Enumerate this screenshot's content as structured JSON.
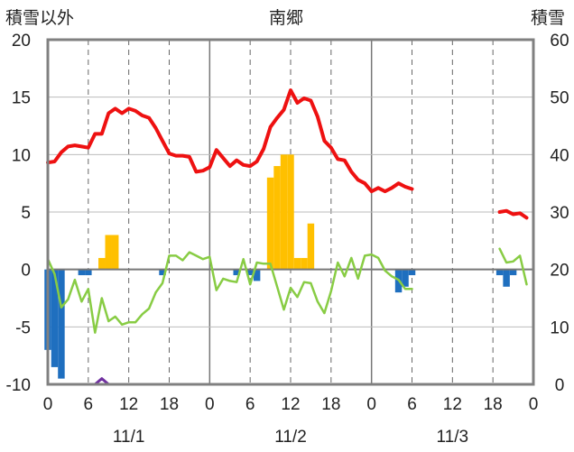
{
  "chart_data": {
    "type": "line",
    "title": "南郷",
    "y_left_label": "積雪以外",
    "y_right_label": "積雪",
    "y_left_range": [
      -10,
      20
    ],
    "y_left_ticks": [
      20,
      15,
      10,
      5,
      0,
      -5,
      -10
    ],
    "y_right_range": [
      0,
      60
    ],
    "y_right_ticks": [
      60,
      50,
      40,
      30,
      20,
      10,
      0
    ],
    "x_range_hours": [
      0,
      72
    ],
    "x_tick_labels": [
      "0",
      "6",
      "12",
      "18",
      "0",
      "6",
      "12",
      "18",
      "0",
      "6",
      "12",
      "18",
      "0"
    ],
    "date_labels": [
      "11/1",
      "11/2",
      "11/3"
    ],
    "grid": true,
    "colors": {
      "temperature": "#ee1111",
      "snow_depth_change": "#88cc44",
      "positive_bar": "#ffc000",
      "negative_bar": "#1f6fbf",
      "snow_depth": "#7030a0",
      "frame": "#808080"
    },
    "series": [
      {
        "type": "line",
        "values": [
          [
            0,
            9.3
          ],
          [
            1,
            9.4
          ],
          [
            2,
            10.2
          ],
          [
            3,
            10.7
          ],
          [
            4,
            10.8
          ],
          [
            5,
            10.7
          ],
          [
            6,
            10.6
          ],
          [
            7,
            11.8
          ],
          [
            8,
            11.8
          ],
          [
            9,
            13.6
          ],
          [
            10,
            14
          ],
          [
            11,
            13.6
          ],
          [
            12,
            14
          ],
          [
            13,
            13.8
          ],
          [
            14,
            13.4
          ],
          [
            15,
            13.2
          ],
          [
            16,
            12.3
          ],
          [
            17,
            11.2
          ],
          [
            18,
            10.1
          ],
          [
            19,
            9.9
          ],
          [
            20,
            9.9
          ],
          [
            21,
            9.8
          ],
          [
            22,
            8.5
          ],
          [
            23,
            8.6
          ],
          [
            24,
            8.9
          ],
          [
            25,
            10.4
          ],
          [
            26,
            9.7
          ],
          [
            27,
            9
          ],
          [
            28,
            9.5
          ],
          [
            29,
            9.1
          ],
          [
            30,
            9
          ],
          [
            31,
            9.4
          ],
          [
            32,
            10.5
          ],
          [
            33,
            12.4
          ],
          [
            34,
            13.2
          ],
          [
            35,
            13.9
          ],
          [
            36,
            15.6
          ],
          [
            37,
            14.5
          ],
          [
            38,
            14.9
          ],
          [
            39,
            14.7
          ],
          [
            40,
            13.3
          ],
          [
            41,
            11.2
          ],
          [
            42,
            10.6
          ],
          [
            43,
            9.6
          ],
          [
            44,
            9.5
          ],
          [
            45,
            8.5
          ],
          [
            46,
            7.8
          ],
          [
            47,
            7.5
          ],
          [
            48,
            6.8
          ],
          [
            49,
            7.1
          ],
          [
            50,
            6.8
          ],
          [
            51,
            7.1
          ],
          [
            52,
            7.5
          ],
          [
            53,
            7.2
          ],
          [
            54,
            7
          ],
          [
            null,
            null
          ],
          [
            67,
            5
          ],
          [
            68,
            5.1
          ],
          [
            69,
            4.8
          ],
          [
            70,
            4.9
          ],
          [
            71,
            4.5
          ]
        ]
      },
      {
        "type": "line",
        "values": [
          [
            0,
            0.9
          ],
          [
            1,
            -0.4
          ],
          [
            2,
            -3.3
          ],
          [
            3,
            -2.6
          ],
          [
            4,
            -0.9
          ],
          [
            5,
            -2.8
          ],
          [
            6,
            -1.7
          ],
          [
            7,
            -5.5
          ],
          [
            8,
            -2.5
          ],
          [
            9,
            -4.5
          ],
          [
            10,
            -4.1
          ],
          [
            11,
            -4.8
          ],
          [
            12,
            -4.6
          ],
          [
            13,
            -4.6
          ],
          [
            14,
            -3.9
          ],
          [
            15,
            -3.4
          ],
          [
            16,
            -2
          ],
          [
            17,
            -1.2
          ],
          [
            18,
            1.2
          ],
          [
            19,
            1.2
          ],
          [
            20,
            0.8
          ],
          [
            21,
            1.5
          ],
          [
            22,
            1.2
          ],
          [
            23,
            0.9
          ],
          [
            24,
            1.1
          ],
          [
            25,
            -1.8
          ],
          [
            26,
            -0.8
          ],
          [
            27,
            -1
          ],
          [
            28,
            -1.1
          ],
          [
            29,
            0.9
          ],
          [
            30,
            -1.3
          ],
          [
            31,
            0.6
          ],
          [
            32,
            0.5
          ],
          [
            33,
            0.5
          ],
          [
            34,
            -1.5
          ],
          [
            35,
            -3.5
          ],
          [
            36,
            -1.6
          ],
          [
            37,
            -2.4
          ],
          [
            38,
            -1.1
          ],
          [
            39,
            -1.2
          ],
          [
            40,
            -2.8
          ],
          [
            41,
            -3.8
          ],
          [
            42,
            -1.9
          ],
          [
            43,
            0.6
          ],
          [
            44,
            -0.6
          ],
          [
            45,
            1
          ],
          [
            46,
            -0.8
          ],
          [
            47,
            1.2
          ],
          [
            48,
            1.3
          ],
          [
            49,
            1
          ],
          [
            50,
            -0.1
          ],
          [
            51,
            -0.6
          ],
          [
            52,
            -0.9
          ],
          [
            53,
            -1.7
          ],
          [
            54,
            -1.7
          ],
          [
            null,
            null
          ],
          [
            67,
            1.8
          ],
          [
            68,
            0.6
          ],
          [
            69,
            0.7
          ],
          [
            70,
            1.2
          ],
          [
            71,
            -1.3
          ]
        ]
      },
      {
        "type": "bar",
        "values": [
          [
            8,
            1
          ],
          [
            9,
            3
          ],
          [
            10,
            3
          ],
          [
            33,
            8
          ],
          [
            34,
            9
          ],
          [
            35,
            10
          ],
          [
            36,
            10
          ],
          [
            37,
            1
          ],
          [
            38,
            1
          ],
          [
            39,
            4
          ]
        ]
      },
      {
        "type": "bar",
        "values": [
          [
            0,
            -7
          ],
          [
            1,
            -8.5
          ],
          [
            2,
            -9.5
          ],
          [
            5,
            -0.5
          ],
          [
            6,
            -0.5
          ],
          [
            17,
            -0.5
          ],
          [
            28,
            -0.5
          ],
          [
            30,
            -0.5
          ],
          [
            31,
            -1
          ],
          [
            52,
            -2
          ],
          [
            53,
            -1.5
          ],
          [
            54,
            -0.5
          ],
          [
            67,
            -0.5
          ],
          [
            68,
            -1.5
          ],
          [
            69,
            -0.5
          ]
        ]
      },
      {
        "type": "line",
        "axis": "right",
        "values": [
          [
            0,
            0
          ],
          [
            6,
            0
          ],
          [
            7,
            0
          ],
          [
            8,
            1
          ],
          [
            9,
            0
          ],
          [
            12,
            0
          ],
          [
            18,
            0
          ],
          [
            24,
            0
          ],
          [
            30,
            0
          ],
          [
            36,
            0
          ],
          [
            42,
            0
          ],
          [
            48,
            0
          ],
          [
            54,
            0
          ],
          [
            null,
            null
          ],
          [
            67,
            0
          ],
          [
            71,
            0
          ]
        ]
      }
    ]
  }
}
